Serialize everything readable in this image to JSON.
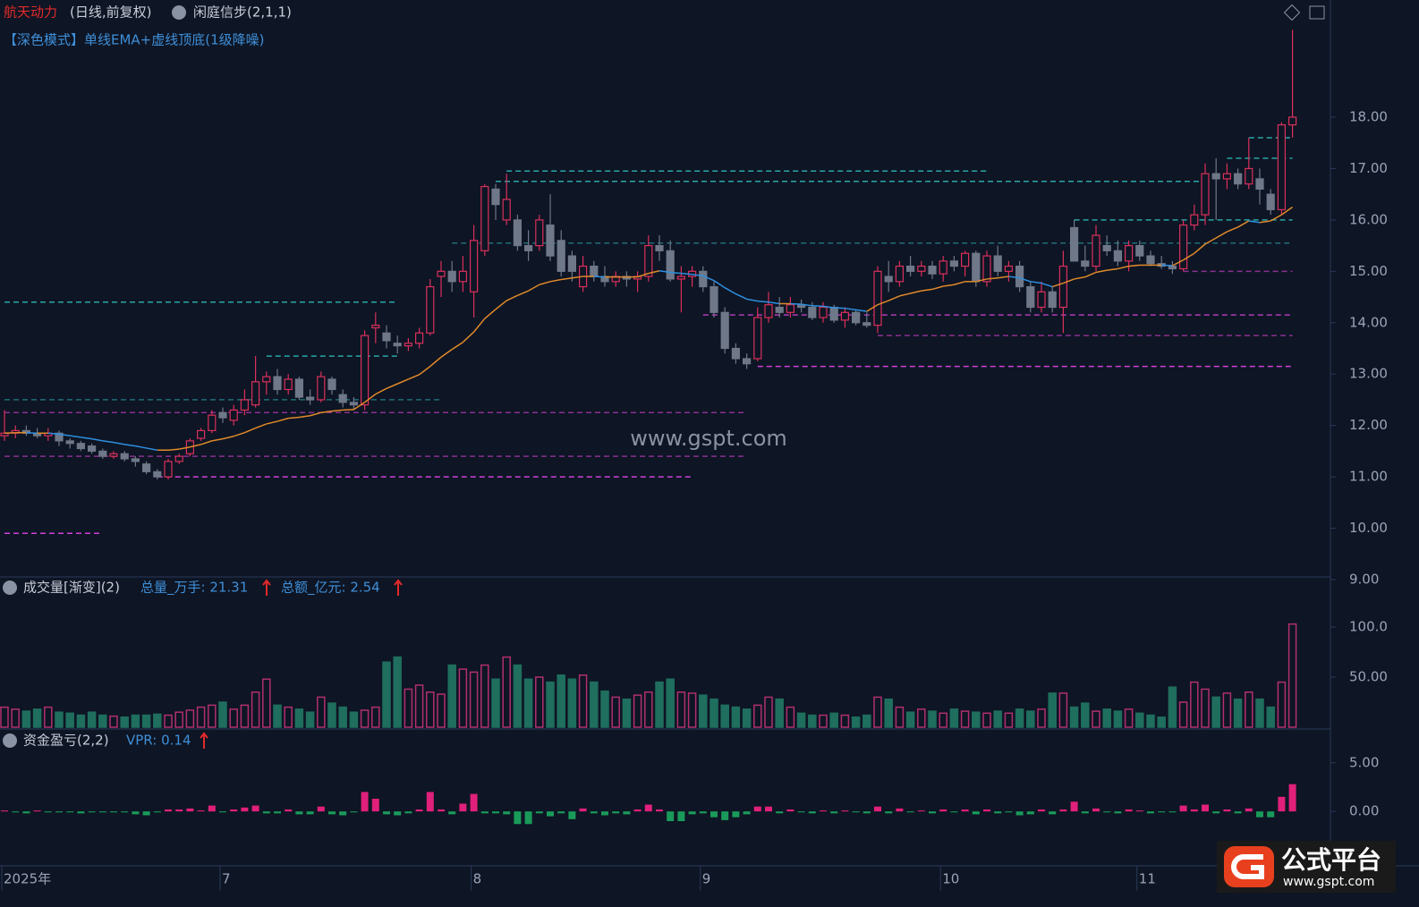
{
  "chart_data": {
    "type": "candlestick",
    "title": "航天动力",
    "subtitle": "(日线,前复权)",
    "indicator": "闲庭信步(2,1,1)",
    "mode_label": "【深色模式】单线EMA+虚线顶底(1级降噪)",
    "watermark": "www.gspt.com",
    "categories": [
      "2025年",
      null,
      null,
      null,
      null,
      null,
      null,
      null,
      null,
      null,
      null,
      null,
      null,
      null,
      null,
      null,
      null,
      null,
      null,
      null,
      "7",
      null,
      null,
      null,
      null,
      null,
      null,
      null,
      null,
      null,
      null,
      null,
      null,
      null,
      null,
      null,
      null,
      null,
      null,
      null,
      null,
      null,
      null,
      "8",
      null,
      null,
      null,
      null,
      null,
      null,
      null,
      null,
      null,
      null,
      null,
      null,
      null,
      null,
      null,
      null,
      null,
      null,
      null,
      null,
      "9",
      null,
      null,
      null,
      null,
      null,
      null,
      null,
      null,
      null,
      null,
      null,
      null,
      null,
      null,
      null,
      null,
      null,
      null,
      null,
      null,
      null,
      "10",
      null,
      null,
      null,
      null,
      null,
      null,
      null,
      null,
      null,
      null,
      null,
      null,
      null,
      null,
      null,
      null,
      null,
      "11",
      null,
      null,
      null,
      null,
      null,
      null,
      null,
      null,
      null,
      null,
      null,
      null,
      null,
      null
    ],
    "ohlc": [
      [
        11.8,
        12.3,
        11.7,
        11.85
      ],
      [
        11.85,
        12.0,
        11.75,
        11.9
      ],
      [
        11.9,
        12.0,
        11.8,
        11.85
      ],
      [
        11.85,
        11.95,
        11.75,
        11.8
      ],
      [
        11.8,
        11.95,
        11.7,
        11.85
      ],
      [
        11.85,
        11.9,
        11.6,
        11.7
      ],
      [
        11.7,
        11.75,
        11.55,
        11.65
      ],
      [
        11.65,
        11.7,
        11.5,
        11.55
      ],
      [
        11.6,
        11.65,
        11.45,
        11.5
      ],
      [
        11.5,
        11.55,
        11.35,
        11.4
      ],
      [
        11.4,
        11.5,
        11.35,
        11.45
      ],
      [
        11.45,
        11.5,
        11.3,
        11.35
      ],
      [
        11.35,
        11.4,
        11.2,
        11.3
      ],
      [
        11.25,
        11.3,
        11.05,
        11.1
      ],
      [
        11.1,
        11.15,
        10.95,
        11.0
      ],
      [
        11.0,
        11.35,
        10.95,
        11.3
      ],
      [
        11.3,
        11.45,
        11.25,
        11.4
      ],
      [
        11.45,
        11.75,
        11.4,
        11.7
      ],
      [
        11.75,
        11.95,
        11.7,
        11.9
      ],
      [
        11.9,
        12.3,
        11.85,
        12.2
      ],
      [
        12.25,
        12.35,
        12.05,
        12.15
      ],
      [
        12.1,
        12.4,
        12.0,
        12.3
      ],
      [
        12.3,
        12.7,
        12.2,
        12.5
      ],
      [
        12.4,
        13.35,
        12.35,
        12.85
      ],
      [
        12.85,
        13.05,
        12.6,
        12.95
      ],
      [
        12.95,
        13.1,
        12.6,
        12.7
      ],
      [
        12.7,
        13.0,
        12.6,
        12.9
      ],
      [
        12.9,
        12.95,
        12.5,
        12.55
      ],
      [
        12.55,
        12.7,
        12.4,
        12.5
      ],
      [
        12.5,
        13.05,
        12.45,
        12.95
      ],
      [
        12.9,
        12.95,
        12.6,
        12.7
      ],
      [
        12.6,
        12.7,
        12.35,
        12.45
      ],
      [
        12.45,
        12.55,
        12.3,
        12.4
      ],
      [
        12.4,
        13.85,
        12.3,
        13.75
      ],
      [
        13.9,
        14.2,
        13.6,
        13.95
      ],
      [
        13.8,
        13.95,
        13.5,
        13.65
      ],
      [
        13.6,
        13.75,
        13.4,
        13.55
      ],
      [
        13.55,
        13.7,
        13.45,
        13.6
      ],
      [
        13.6,
        13.9,
        13.5,
        13.8
      ],
      [
        13.8,
        14.85,
        13.75,
        14.7
      ],
      [
        14.9,
        15.2,
        14.5,
        15.0
      ],
      [
        15.0,
        15.2,
        14.6,
        14.8
      ],
      [
        14.8,
        15.3,
        14.6,
        15.0
      ],
      [
        14.6,
        15.9,
        14.1,
        15.6
      ],
      [
        15.4,
        16.7,
        15.3,
        16.65
      ],
      [
        16.6,
        16.7,
        16.0,
        16.3
      ],
      [
        16.0,
        16.9,
        15.9,
        16.4
      ],
      [
        16.0,
        16.1,
        15.4,
        15.5
      ],
      [
        15.5,
        15.8,
        15.2,
        15.4
      ],
      [
        15.5,
        16.1,
        15.4,
        16.0
      ],
      [
        15.9,
        16.5,
        15.2,
        15.3
      ],
      [
        15.6,
        15.8,
        14.9,
        15.0
      ],
      [
        15.3,
        15.4,
        14.8,
        15.0
      ],
      [
        14.7,
        15.3,
        14.6,
        15.1
      ],
      [
        15.1,
        15.2,
        14.8,
        14.9
      ],
      [
        14.9,
        15.1,
        14.7,
        14.8
      ],
      [
        14.8,
        15.0,
        14.7,
        14.9
      ],
      [
        14.9,
        15.0,
        14.7,
        14.85
      ],
      [
        14.85,
        15.0,
        14.6,
        14.9
      ],
      [
        14.9,
        15.7,
        14.8,
        15.5
      ],
      [
        15.5,
        15.7,
        15.2,
        15.4
      ],
      [
        15.4,
        15.6,
        14.8,
        14.85
      ],
      [
        14.85,
        15.1,
        14.2,
        14.9
      ],
      [
        14.9,
        15.1,
        14.7,
        15.0
      ],
      [
        15.0,
        15.1,
        14.6,
        14.7
      ],
      [
        14.7,
        14.8,
        14.1,
        14.2
      ],
      [
        14.2,
        14.3,
        13.4,
        13.5
      ],
      [
        13.5,
        13.6,
        13.2,
        13.3
      ],
      [
        13.3,
        13.4,
        13.1,
        13.2
      ],
      [
        13.3,
        14.3,
        13.25,
        14.1
      ],
      [
        14.1,
        14.6,
        14.0,
        14.35
      ],
      [
        14.3,
        14.5,
        14.1,
        14.2
      ],
      [
        14.2,
        14.5,
        14.1,
        14.35
      ],
      [
        14.35,
        14.45,
        14.2,
        14.3
      ],
      [
        14.3,
        14.4,
        14.05,
        14.1
      ],
      [
        14.1,
        14.4,
        14.0,
        14.3
      ],
      [
        14.3,
        14.35,
        14.0,
        14.05
      ],
      [
        14.05,
        14.3,
        13.9,
        14.2
      ],
      [
        14.2,
        14.25,
        13.95,
        14.0
      ],
      [
        14.0,
        14.2,
        13.9,
        13.95
      ],
      [
        13.95,
        15.1,
        13.8,
        15.0
      ],
      [
        14.9,
        15.2,
        14.6,
        14.8
      ],
      [
        14.8,
        15.2,
        14.7,
        15.1
      ],
      [
        15.1,
        15.3,
        14.9,
        15.0
      ],
      [
        15.0,
        15.2,
        14.9,
        15.1
      ],
      [
        15.1,
        15.2,
        14.85,
        14.95
      ],
      [
        14.95,
        15.3,
        14.8,
        15.2
      ],
      [
        15.2,
        15.3,
        15.0,
        15.1
      ],
      [
        15.1,
        15.4,
        14.9,
        15.35
      ],
      [
        15.35,
        15.4,
        14.7,
        14.8
      ],
      [
        14.8,
        15.4,
        14.7,
        15.3
      ],
      [
        15.3,
        15.5,
        14.9,
        15.0
      ],
      [
        15.0,
        15.2,
        14.8,
        15.1
      ],
      [
        15.1,
        15.2,
        14.6,
        14.7
      ],
      [
        14.7,
        14.8,
        14.2,
        14.3
      ],
      [
        14.3,
        14.8,
        14.2,
        14.6
      ],
      [
        14.6,
        14.7,
        14.2,
        14.3
      ],
      [
        14.3,
        15.4,
        13.8,
        15.1
      ],
      [
        15.85,
        16.0,
        15.2,
        15.2
      ],
      [
        15.2,
        15.5,
        15.0,
        15.1
      ],
      [
        15.1,
        15.9,
        15.0,
        15.7
      ],
      [
        15.5,
        15.7,
        15.3,
        15.4
      ],
      [
        15.4,
        15.6,
        15.1,
        15.2
      ],
      [
        15.2,
        15.6,
        15.0,
        15.5
      ],
      [
        15.5,
        15.6,
        15.2,
        15.3
      ],
      [
        15.3,
        15.4,
        15.1,
        15.15
      ],
      [
        15.15,
        15.3,
        15.05,
        15.1
      ],
      [
        15.1,
        15.2,
        14.95,
        15.05
      ],
      [
        15.05,
        16.0,
        15.0,
        15.9
      ],
      [
        15.9,
        16.3,
        15.8,
        16.1
      ],
      [
        16.1,
        17.1,
        15.9,
        16.9
      ],
      [
        16.9,
        17.2,
        16.0,
        16.8
      ],
      [
        16.8,
        17.1,
        16.6,
        16.9
      ],
      [
        16.9,
        17.0,
        16.6,
        16.7
      ],
      [
        16.7,
        17.6,
        16.6,
        17.0
      ],
      [
        16.8,
        17.0,
        16.3,
        16.6
      ],
      [
        16.5,
        16.6,
        16.1,
        16.2
      ],
      [
        16.2,
        17.9,
        16.1,
        17.85
      ],
      [
        17.85,
        19.7,
        17.6,
        18.0
      ]
    ],
    "up_color": "#d9305c",
    "down_color": "#6f7888",
    "ema": {
      "up_color": "#e08a2a",
      "down_color": "#2d8fe0",
      "values": [
        11.85,
        11.86,
        11.86,
        11.85,
        11.85,
        11.83,
        11.8,
        11.77,
        11.74,
        11.7,
        11.67,
        11.63,
        11.6,
        11.56,
        11.52,
        11.52,
        11.54,
        11.58,
        11.63,
        11.7,
        11.74,
        11.79,
        11.86,
        11.95,
        12.03,
        12.08,
        12.14,
        12.16,
        12.19,
        12.25,
        12.28,
        12.3,
        12.31,
        12.45,
        12.61,
        12.72,
        12.81,
        12.9,
        12.99,
        13.15,
        13.33,
        13.48,
        13.62,
        13.82,
        14.08,
        14.26,
        14.43,
        14.53,
        14.62,
        14.74,
        14.8,
        14.84,
        14.87,
        14.9,
        14.9,
        14.89,
        14.89,
        14.89,
        14.89,
        14.96,
        15.01,
        14.98,
        14.96,
        14.94,
        14.91,
        14.82,
        14.68,
        14.56,
        14.46,
        14.42,
        14.4,
        14.37,
        14.37,
        14.36,
        14.33,
        14.32,
        14.29,
        14.28,
        14.25,
        14.22,
        14.35,
        14.43,
        14.52,
        14.57,
        14.62,
        14.65,
        14.71,
        14.74,
        14.8,
        14.8,
        14.85,
        14.87,
        14.9,
        14.87,
        14.8,
        14.77,
        14.7,
        14.77,
        14.85,
        14.89,
        14.98,
        15.02,
        15.05,
        15.1,
        15.12,
        15.12,
        15.12,
        15.11,
        15.22,
        15.35,
        15.53,
        15.65,
        15.77,
        15.86,
        15.98,
        15.95,
        15.98,
        16.1,
        16.25
      ]
    },
    "levels": [
      {
        "value": 14.4,
        "from": 0,
        "to": 36,
        "color": "#2aa7a7"
      },
      {
        "value": 13.35,
        "from": 24,
        "to": 36,
        "color": "#2aa7a7"
      },
      {
        "value": 12.5,
        "from": 0,
        "to": 40,
        "color": "#1f6f78"
      },
      {
        "value": 16.95,
        "from": 46,
        "to": 90,
        "color": "#2aa7a7"
      },
      {
        "value": 16.75,
        "from": 45,
        "to": 110,
        "color": "#2aa7a7"
      },
      {
        "value": 15.55,
        "from": 41,
        "to": 118,
        "color": "#1f6f78"
      },
      {
        "value": 16.0,
        "from": 98,
        "to": 118,
        "color": "#2aa7a7"
      },
      {
        "value": 17.2,
        "from": 112,
        "to": 118,
        "color": "#2aa7a7"
      },
      {
        "value": 17.6,
        "from": 114,
        "to": 118,
        "color": "#2aa7a7"
      },
      {
        "value": 14.15,
        "from": 64,
        "to": 118,
        "color": "#b03cb8"
      },
      {
        "value": 13.15,
        "from": 69,
        "to": 118,
        "color": "#d040d8"
      },
      {
        "value": 13.75,
        "from": 80,
        "to": 118,
        "color": "#8a3090"
      },
      {
        "value": 12.25,
        "from": 0,
        "to": 68,
        "color": "#8a3090"
      },
      {
        "value": 11.0,
        "from": 14,
        "to": 63,
        "color": "#d040d8"
      },
      {
        "value": 11.4,
        "from": 0,
        "to": 68,
        "color": "#8a3090"
      },
      {
        "value": 15.0,
        "from": 108,
        "to": 118,
        "color": "#8a3090"
      },
      {
        "value": 9.9,
        "from": 0,
        "to": 9,
        "color": "#d040d8"
      }
    ],
    "ylim": [
      9.0,
      20.28
    ],
    "yticks": [
      {
        "value": 9,
        "label": "9.00"
      },
      {
        "value": 10,
        "label": "10.00"
      },
      {
        "value": 11,
        "label": "11.00"
      },
      {
        "value": 12,
        "label": "12.00"
      },
      {
        "value": 13,
        "label": "13.00"
      },
      {
        "value": 14,
        "label": "14.00"
      },
      {
        "value": 15,
        "label": "15.00"
      },
      {
        "value": 16,
        "label": "16.00"
      },
      {
        "value": 17,
        "label": "17.00"
      },
      {
        "value": 18,
        "label": "18.00"
      }
    ],
    "volume": {
      "title": "成交量[渐变](2)",
      "stat1": "总量_万手: 21.31",
      "stat2": "总额_亿元: 2.54",
      "up_color": "#b0306e",
      "down_color": "#1f6e5e",
      "ylim": [
        0,
        150
      ],
      "yticks": [
        {
          "value": 50,
          "label": "50.00"
        },
        {
          "value": 100,
          "label": "100.0"
        }
      ],
      "values": [
        20,
        18,
        16,
        18,
        20,
        15,
        14,
        12,
        15,
        12,
        11,
        10,
        12,
        12,
        13,
        12,
        15,
        17,
        20,
        22,
        25,
        18,
        22,
        35,
        48,
        22,
        20,
        18,
        15,
        30,
        24,
        20,
        15,
        17,
        20,
        65,
        70,
        38,
        42,
        35,
        33,
        62,
        58,
        55,
        62,
        48,
        70,
        62,
        48,
        50,
        45,
        52,
        48,
        52,
        45,
        36,
        30,
        28,
        32,
        35,
        45,
        48,
        35,
        34,
        32,
        28,
        22,
        20,
        18,
        22,
        30,
        28,
        20,
        14,
        12,
        12,
        14,
        12,
        10,
        12,
        30,
        28,
        20,
        15,
        18,
        16,
        14,
        18,
        16,
        15,
        14,
        16,
        14,
        18,
        16,
        18,
        34,
        34,
        20,
        24,
        16,
        18,
        16,
        18,
        14,
        12,
        10,
        40,
        25,
        45,
        38,
        30,
        34,
        28,
        35,
        28,
        20,
        45,
        103
      ]
    },
    "vpr": {
      "title": "资金盈亏(2,2)",
      "stat": "VPR: 0.14",
      "pos_color": "#e0207a",
      "neg_color": "#1a9a5a",
      "ylim": [
        -5.6,
        8.2
      ],
      "yticks": [
        {
          "value": 0,
          "label": "0.00"
        },
        {
          "value": 5,
          "label": "5.00"
        }
      ],
      "values": [
        0.1,
        -0.1,
        -0.2,
        0.1,
        -0.1,
        -0.1,
        -0.1,
        -0.2,
        -0.1,
        -0.1,
        -0.1,
        -0.1,
        -0.3,
        -0.4,
        -0.1,
        0.2,
        0.2,
        0.3,
        0.1,
        0.6,
        -0.1,
        0.2,
        0.4,
        0.6,
        -0.2,
        -0.2,
        0.2,
        -0.3,
        -0.3,
        0.5,
        -0.3,
        -0.4,
        -0.1,
        2.0,
        1.3,
        -0.3,
        -0.4,
        -0.2,
        0.2,
        2.0,
        0.2,
        -0.3,
        0.8,
        1.8,
        -0.2,
        -0.2,
        -0.3,
        -1.3,
        -1.3,
        -0.2,
        -0.5,
        -0.2,
        -0.8,
        0.3,
        -0.2,
        -0.4,
        -0.2,
        -0.3,
        0.2,
        0.7,
        0.2,
        -1.0,
        -1.0,
        -0.3,
        -0.2,
        -0.6,
        -0.9,
        -0.6,
        -0.3,
        0.5,
        0.5,
        -0.2,
        0.2,
        -0.1,
        -0.2,
        0.1,
        -0.2,
        0.1,
        -0.1,
        -0.2,
        0.5,
        -0.2,
        0.3,
        -0.1,
        0.1,
        -0.2,
        0.2,
        -0.1,
        0.2,
        -0.3,
        0.2,
        -0.2,
        -0.1,
        -0.4,
        -0.3,
        0.2,
        -0.3,
        0.2,
        1.0,
        -0.2,
        0.3,
        -0.1,
        -0.2,
        0.2,
        0.1,
        -0.2,
        -0.1,
        -0.1,
        0.6,
        0.2,
        0.7,
        -0.2,
        0.2,
        -0.2,
        0.3,
        -0.6,
        -0.6,
        1.5,
        2.8
      ]
    }
  },
  "logo": {
    "name": "公式平台",
    "url": "www.gspt.com"
  }
}
